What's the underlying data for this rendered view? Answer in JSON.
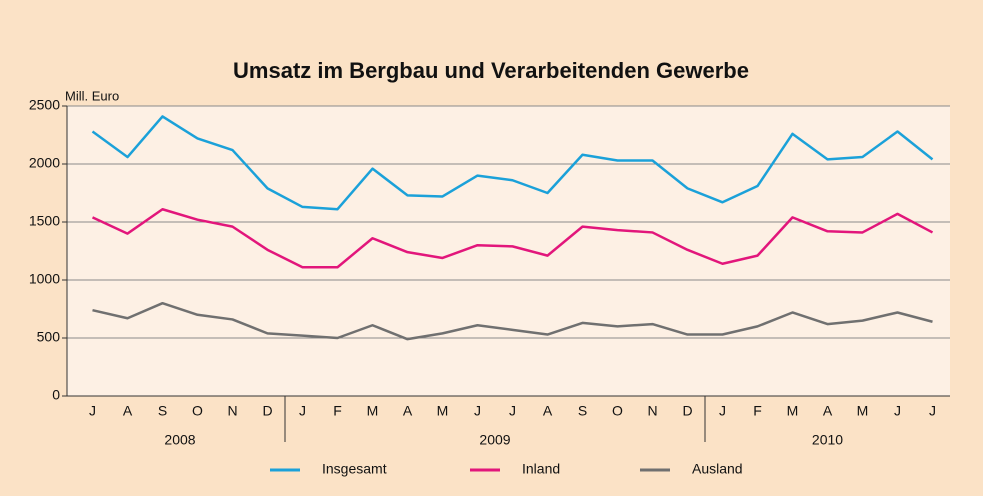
{
  "chart_data": {
    "type": "line",
    "title": "Umsatz im Bergbau und Verarbeitenden Gewerbe",
    "y_label": "Mill. Euro",
    "categories": [
      "J",
      "A",
      "S",
      "O",
      "N",
      "D",
      "J",
      "F",
      "M",
      "A",
      "M",
      "J",
      "J",
      "A",
      "S",
      "O",
      "N",
      "D",
      "J",
      "F",
      "M",
      "A",
      "M",
      "J",
      "J"
    ],
    "year_groups": [
      {
        "label": "2008",
        "count": 6
      },
      {
        "label": "2009",
        "count": 12
      },
      {
        "label": "2010",
        "count": 7
      }
    ],
    "series": [
      {
        "name": "Insgesamt",
        "color": "#1ba1d9",
        "values": [
          2280,
          2060,
          2410,
          2220,
          2120,
          1790,
          1630,
          1610,
          1960,
          1730,
          1720,
          1900,
          1860,
          1750,
          2080,
          2030,
          2030,
          1790,
          1670,
          1810,
          2260,
          2040,
          2060,
          2280,
          2040
        ]
      },
      {
        "name": "Inland",
        "color": "#e2167b",
        "values": [
          1540,
          1400,
          1610,
          1520,
          1460,
          1260,
          1110,
          1110,
          1360,
          1240,
          1190,
          1300,
          1290,
          1210,
          1460,
          1430,
          1410,
          1260,
          1140,
          1210,
          1540,
          1420,
          1410,
          1570,
          1410
        ]
      },
      {
        "name": "Ausland",
        "color": "#707070",
        "values": [
          740,
          670,
          800,
          700,
          660,
          540,
          520,
          500,
          610,
          490,
          540,
          610,
          570,
          530,
          630,
          600,
          620,
          530,
          530,
          600,
          720,
          620,
          650,
          720,
          640
        ]
      }
    ],
    "ylim": [
      0,
      2500
    ],
    "yticks": [
      0,
      500,
      1000,
      1500,
      2000,
      2500
    ],
    "grid": true,
    "legend": "bottom"
  }
}
